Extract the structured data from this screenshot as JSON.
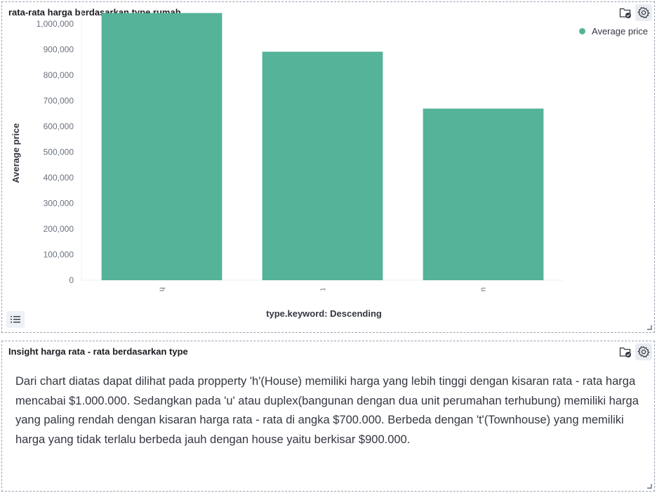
{
  "panel1": {
    "title": "rata-rata harga berdasarkan type rumah"
  },
  "panel2": {
    "title": "Insight harga rata - rata berdasarkan type",
    "text": "Dari chart diatas dapat dilihat pada propperty 'h'(House) memiliki harga yang lebih tinggi dengan kisaran rata - rata harga mencabai $1.000.000. Sedangkan pada 'u' atau duplex(bangunan dengan dua unit perumahan terhubung) memiliki harga yang paling rendah dengan kisaran harga rata - rata di angka $700.000. Berbeda dengan 't'(Townhouse) yang memiliki harga yang tidak terlalu berbeda jauh dengan house yaitu berkisar $900.000."
  },
  "icons": {
    "panel_menu": "folder-check-icon",
    "settings": "gear-icon",
    "legend_toggle": "list-icon",
    "resize": "resize-corner-icon"
  },
  "colors": {
    "bar": "#54b399"
  },
  "chart_data": {
    "type": "bar",
    "categories": [
      "h",
      "t",
      "u"
    ],
    "series": [
      {
        "name": "Average price",
        "values": [
          1043000,
          892000,
          670000
        ]
      }
    ],
    "xlabel": "type.keyword: Descending",
    "ylabel": "Average price",
    "ylim": [
      0,
      1050000
    ],
    "yticks": [
      0,
      100000,
      200000,
      300000,
      400000,
      500000,
      600000,
      700000,
      800000,
      900000,
      1000000
    ],
    "ytick_labels": [
      "0",
      "100,000",
      "200,000",
      "300,000",
      "400,000",
      "500,000",
      "600,000",
      "700,000",
      "800,000",
      "900,000",
      "1,000,000"
    ],
    "legend": "top-right",
    "grid": false
  }
}
